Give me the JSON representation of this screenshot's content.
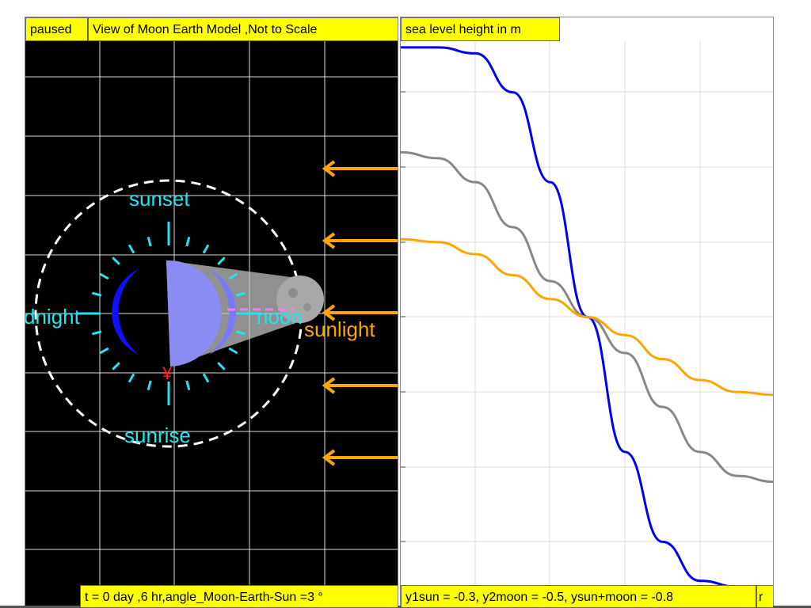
{
  "left": {
    "status": "paused",
    "title": "View of Moon Earth Model ,Not to Scale",
    "readout": "t = 0 day ,6 hr,angle_Moon-Earth-Sun =3 °",
    "labels": {
      "sunset": "sunset",
      "sunrise": "sunrise",
      "midnight": "dnight",
      "noon": "noon",
      "sunlight": "sunlight"
    }
  },
  "right": {
    "title": "sea level height in m",
    "readout": "y1sun = -0.3, y2moon = -0.5, ysun+moon = -0.8",
    "corner": "r"
  },
  "colors": {
    "label_bg": "#ffff00",
    "cyan": "#22e5f0",
    "orange": "#ffa500",
    "blue_curve": "#0000ee",
    "gray_curve": "#888888",
    "orange_curve": "#ffa500"
  },
  "chart_data": {
    "type": "line",
    "title": "sea level height in m",
    "xlabel": "",
    "ylabel": "",
    "grid": true,
    "series": [
      {
        "name": "y2moon",
        "color": "#0000ee",
        "x": [
          0,
          10,
          20,
          30,
          40,
          50,
          60,
          70,
          80,
          90,
          100
        ],
        "y": [
          0.9,
          0.9,
          0.88,
          0.75,
          0.45,
          0.0,
          -0.45,
          -0.75,
          -0.88,
          -0.9,
          -0.9
        ]
      },
      {
        "name": "ysun+moon",
        "color": "#888888",
        "x": [
          0,
          10,
          20,
          30,
          40,
          50,
          60,
          70,
          80,
          90,
          100
        ],
        "y": [
          0.55,
          0.53,
          0.45,
          0.3,
          0.12,
          0.0,
          -0.12,
          -0.3,
          -0.45,
          -0.53,
          -0.55
        ]
      },
      {
        "name": "y1sun",
        "color": "#ffa500",
        "x": [
          0,
          10,
          20,
          30,
          40,
          50,
          60,
          70,
          80,
          90,
          100
        ],
        "y": [
          0.26,
          0.25,
          0.21,
          0.14,
          0.06,
          0.0,
          -0.06,
          -0.14,
          -0.21,
          -0.25,
          -0.26
        ]
      }
    ]
  }
}
